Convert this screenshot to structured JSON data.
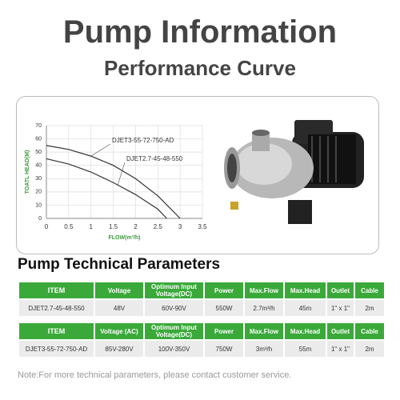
{
  "header": {
    "title": "Pump Information",
    "subtitle": "Performance Curve"
  },
  "chart_data": {
    "type": "line",
    "x_label": "FLOW(m³/h)",
    "y_label": "TOATL HEAD(M)",
    "xlim": [
      0,
      3.5
    ],
    "xticks": [
      0,
      0.5,
      1,
      1.5,
      2,
      2.5,
      3,
      3.5
    ],
    "ylim": [
      0,
      70
    ],
    "yticks": [
      0,
      10,
      20,
      30,
      40,
      50,
      60,
      70
    ],
    "grid": true,
    "series": [
      {
        "name": "DJET3-55-72-750-AD",
        "color": "#333333",
        "x": [
          0,
          0.5,
          1,
          1.5,
          2,
          2.5,
          3
        ],
        "values": [
          55,
          52,
          47,
          40,
          30,
          17,
          0
        ]
      },
      {
        "name": "DJET2.7-45-48-550",
        "color": "#333333",
        "x": [
          0,
          0.5,
          1,
          1.5,
          2,
          2.5,
          2.7
        ],
        "values": [
          45,
          41,
          35,
          27,
          18,
          7,
          0
        ]
      }
    ]
  },
  "section_title": "Pump Technical Parameters",
  "tables": [
    {
      "header": [
        "ITEM",
        "Voltage",
        "Optimum Input Voltage(DC)",
        "Power",
        "Max.Flow",
        "Max.Head",
        "Outlet",
        "Cable"
      ],
      "rows": [
        [
          "DJET2.7-45-48-550",
          "48V",
          "60V-90V",
          "550W",
          "2.7m³/h",
          "45m",
          "1\" x 1\"",
          "2m"
        ]
      ]
    },
    {
      "header": [
        "ITEM",
        "Voltage (AC)",
        "Optimum Input Voltage(DC)",
        "Power",
        "Max.Flow",
        "Max.Head",
        "Outlet",
        "Cable"
      ],
      "rows": [
        [
          "DJET3-55-72-750-AD",
          "85V-280V",
          "100V-350V",
          "750W",
          "3m³/h",
          "55m",
          "1\" x 1\"",
          "2m"
        ]
      ]
    }
  ],
  "note": "Note:For more technical parameters, please contact customer service."
}
